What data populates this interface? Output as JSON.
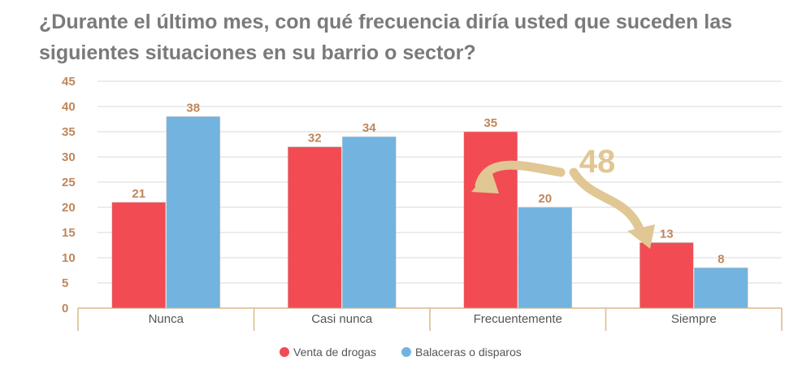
{
  "title": "¿Durante el último mes, con qué frecuencia diría usted que suceden las siguientes situaciones en su barrio o sector?",
  "chart_data": {
    "type": "bar",
    "categories": [
      "Nunca",
      "Casi nunca",
      "Frecuentemente",
      "Siempre"
    ],
    "series": [
      {
        "name": "Venta de drogas",
        "values": [
          21,
          32,
          35,
          13
        ],
        "color": "#f24b53"
      },
      {
        "name": "Balaceras o disparos",
        "values": [
          38,
          34,
          20,
          8
        ],
        "color": "#72b3df"
      }
    ],
    "yticks": [
      0,
      5,
      10,
      15,
      20,
      25,
      30,
      35,
      40,
      45
    ],
    "ylim": [
      0,
      45
    ],
    "grid": true,
    "legend_position": "bottom-center",
    "annotation": {
      "text": "48",
      "color": "#e0c793"
    }
  }
}
